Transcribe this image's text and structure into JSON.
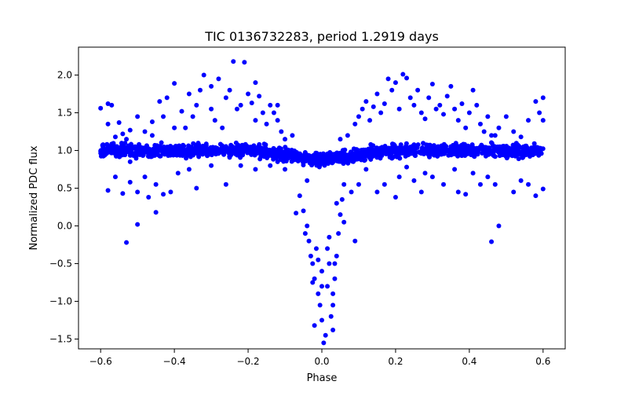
{
  "chart_data": {
    "type": "scatter",
    "title": "TIC 0136732283, period 1.2919 days",
    "xlabel": "Phase",
    "ylabel": "Normalized PDC flux",
    "xlim": [
      -0.66,
      0.66
    ],
    "ylim": [
      -1.63,
      2.37
    ],
    "x_ticks": [
      -0.6,
      -0.4,
      -0.2,
      0.0,
      0.2,
      0.4,
      0.6
    ],
    "x_tick_labels": [
      "−0.6",
      "−0.4",
      "−0.2",
      "0.0",
      "0.2",
      "0.4",
      "0.6"
    ],
    "y_ticks": [
      -1.5,
      -1.0,
      -0.5,
      0.0,
      0.5,
      1.0,
      1.5,
      2.0
    ],
    "y_tick_labels": [
      "−1.5",
      "−1.0",
      "−0.5",
      "0.0",
      "0.5",
      "1.0",
      "1.5",
      "2.0"
    ],
    "grid": false,
    "marker_color": "#0000ff",
    "series": [
      {
        "color": "#0000ff",
        "points": [
          [
            -0.6,
            1.56
          ],
          [
            -0.58,
            1.62
          ],
          [
            -0.57,
            1.6
          ],
          [
            -0.58,
            1.35
          ],
          [
            -0.56,
            1.18
          ],
          [
            -0.55,
            1.37
          ],
          [
            -0.54,
            1.22
          ],
          [
            -0.52,
            1.27
          ],
          [
            -0.5,
            1.45
          ],
          [
            -0.48,
            1.25
          ],
          [
            -0.46,
            1.38
          ],
          [
            -0.44,
            1.65
          ],
          [
            -0.42,
            1.7
          ],
          [
            -0.4,
            1.89
          ],
          [
            -0.38,
            1.52
          ],
          [
            -0.36,
            1.75
          ],
          [
            -0.34,
            1.6
          ],
          [
            -0.33,
            1.8
          ],
          [
            -0.32,
            2.0
          ],
          [
            -0.3,
            1.85
          ],
          [
            -0.29,
            1.4
          ],
          [
            -0.28,
            1.95
          ],
          [
            -0.26,
            1.7
          ],
          [
            -0.25,
            1.8
          ],
          [
            -0.24,
            2.18
          ],
          [
            -0.23,
            1.55
          ],
          [
            -0.22,
            1.6
          ],
          [
            -0.21,
            2.17
          ],
          [
            -0.2,
            1.75
          ],
          [
            -0.19,
            1.63
          ],
          [
            -0.18,
            1.9
          ],
          [
            -0.17,
            1.72
          ],
          [
            -0.16,
            1.5
          ],
          [
            -0.15,
            1.35
          ],
          [
            -0.14,
            1.6
          ],
          [
            -0.13,
            1.5
          ],
          [
            -0.12,
            1.6
          ],
          [
            -0.11,
            1.25
          ],
          [
            -0.1,
            1.15
          ],
          [
            -0.08,
            1.2
          ],
          [
            -0.46,
            1.2
          ],
          [
            -0.4,
            1.3
          ],
          [
            -0.35,
            1.45
          ],
          [
            -0.27,
            1.3
          ],
          [
            -0.18,
            1.4
          ],
          [
            -0.12,
            1.4
          ],
          [
            -0.3,
            1.55
          ],
          [
            -0.37,
            1.3
          ],
          [
            -0.43,
            1.45
          ],
          [
            -0.53,
            1.15
          ],
          [
            0.05,
            1.15
          ],
          [
            0.07,
            1.2
          ],
          [
            0.09,
            1.35
          ],
          [
            0.1,
            1.45
          ],
          [
            0.11,
            1.55
          ],
          [
            0.12,
            1.65
          ],
          [
            0.13,
            1.4
          ],
          [
            0.14,
            1.58
          ],
          [
            0.15,
            1.75
          ],
          [
            0.16,
            1.5
          ],
          [
            0.17,
            1.62
          ],
          [
            0.18,
            1.95
          ],
          [
            0.19,
            1.8
          ],
          [
            0.2,
            1.9
          ],
          [
            0.21,
            1.55
          ],
          [
            0.22,
            2.01
          ],
          [
            0.23,
            1.96
          ],
          [
            0.24,
            1.7
          ],
          [
            0.25,
            1.6
          ],
          [
            0.26,
            1.8
          ],
          [
            0.27,
            1.5
          ],
          [
            0.28,
            1.42
          ],
          [
            0.29,
            1.7
          ],
          [
            0.3,
            1.88
          ],
          [
            0.31,
            1.55
          ],
          [
            0.32,
            1.6
          ],
          [
            0.33,
            1.48
          ],
          [
            0.34,
            1.72
          ],
          [
            0.35,
            1.85
          ],
          [
            0.36,
            1.55
          ],
          [
            0.37,
            1.4
          ],
          [
            0.38,
            1.62
          ],
          [
            0.39,
            1.3
          ],
          [
            0.4,
            1.5
          ],
          [
            0.41,
            1.8
          ],
          [
            0.42,
            1.6
          ],
          [
            0.43,
            1.35
          ],
          [
            0.44,
            1.25
          ],
          [
            0.45,
            1.45
          ],
          [
            0.47,
            1.2
          ],
          [
            0.48,
            1.3
          ],
          [
            0.5,
            1.45
          ],
          [
            0.52,
            1.25
          ],
          [
            0.54,
            1.18
          ],
          [
            0.56,
            1.4
          ],
          [
            0.58,
            1.65
          ],
          [
            0.59,
            1.5
          ],
          [
            0.6,
            1.7
          ],
          [
            0.6,
            1.4
          ],
          [
            0.46,
            1.2
          ],
          [
            -0.58,
            0.47
          ],
          [
            -0.56,
            0.65
          ],
          [
            -0.54,
            0.43
          ],
          [
            -0.53,
            -0.22
          ],
          [
            -0.52,
            0.58
          ],
          [
            -0.5,
            0.02
          ],
          [
            -0.5,
            0.45
          ],
          [
            -0.48,
            0.65
          ],
          [
            -0.47,
            0.38
          ],
          [
            -0.45,
            0.55
          ],
          [
            -0.45,
            0.18
          ],
          [
            -0.43,
            0.42
          ],
          [
            -0.41,
            0.45
          ],
          [
            -0.39,
            0.7
          ],
          [
            -0.34,
            0.5
          ],
          [
            -0.3,
            0.8
          ],
          [
            -0.26,
            0.55
          ],
          [
            -0.22,
            0.8
          ],
          [
            -0.18,
            0.75
          ],
          [
            -0.14,
            0.8
          ],
          [
            -0.12,
            0.85
          ],
          [
            -0.1,
            0.75
          ],
          [
            -0.07,
            0.17
          ],
          [
            -0.52,
            0.85
          ],
          [
            -0.36,
            0.75
          ],
          [
            0.12,
            0.75
          ],
          [
            0.15,
            0.45
          ],
          [
            0.17,
            0.55
          ],
          [
            0.2,
            0.38
          ],
          [
            0.21,
            0.65
          ],
          [
            0.23,
            0.78
          ],
          [
            0.25,
            0.6
          ],
          [
            0.28,
            0.7
          ],
          [
            0.3,
            0.65
          ],
          [
            0.33,
            0.55
          ],
          [
            0.36,
            0.75
          ],
          [
            0.39,
            0.42
          ],
          [
            0.41,
            0.7
          ],
          [
            0.43,
            0.55
          ],
          [
            0.45,
            0.65
          ],
          [
            0.47,
            0.55
          ],
          [
            0.48,
            0.0
          ],
          [
            0.46,
            -0.21
          ],
          [
            0.52,
            0.45
          ],
          [
            0.54,
            0.6
          ],
          [
            0.56,
            0.55
          ],
          [
            0.58,
            0.4
          ],
          [
            0.6,
            0.49
          ],
          [
            0.37,
            0.45
          ],
          [
            0.27,
            0.45
          ],
          [
            -0.06,
            0.4
          ],
          [
            -0.05,
            0.2
          ],
          [
            -0.045,
            -0.1
          ],
          [
            -0.04,
            0.0
          ],
          [
            -0.035,
            -0.2
          ],
          [
            -0.03,
            -0.4
          ],
          [
            -0.025,
            -0.5
          ],
          [
            -0.02,
            -0.7
          ],
          [
            -0.015,
            -0.3
          ],
          [
            -0.01,
            -0.9
          ],
          [
            -0.005,
            -1.05
          ],
          [
            0.0,
            -1.25
          ],
          [
            0.0,
            -0.6
          ],
          [
            0.005,
            -1.55
          ],
          [
            0.01,
            -1.45
          ],
          [
            0.015,
            -0.8
          ],
          [
            0.02,
            -0.5
          ],
          [
            0.025,
            -1.2
          ],
          [
            0.03,
            -1.05
          ],
          [
            0.035,
            -0.7
          ],
          [
            0.04,
            -0.4
          ],
          [
            0.045,
            -0.1
          ],
          [
            0.05,
            0.15
          ],
          [
            0.055,
            0.35
          ],
          [
            0.06,
            0.55
          ],
          [
            -0.02,
            -1.32
          ],
          [
            0.03,
            -1.38
          ],
          [
            -0.01,
            -0.45
          ],
          [
            0.02,
            -0.15
          ],
          [
            0.035,
            -0.5
          ],
          [
            0.08,
            0.45
          ],
          [
            0.09,
            -0.2
          ],
          [
            0.1,
            0.55
          ],
          [
            0.0,
            -0.8
          ],
          [
            0.03,
            -0.9
          ],
          [
            0.06,
            0.05
          ],
          [
            -0.04,
            0.6
          ],
          [
            0.04,
            0.3
          ],
          [
            -0.025,
            -0.75
          ],
          [
            0.015,
            -0.3
          ]
        ]
      }
    ],
    "band": {
      "description_free": true,
      "x_range": [
        -0.6,
        0.6
      ],
      "center": 1.0,
      "dip_center": 0.0,
      "dip_depth": 0.12,
      "dip_halfwidth": 0.08
    }
  }
}
